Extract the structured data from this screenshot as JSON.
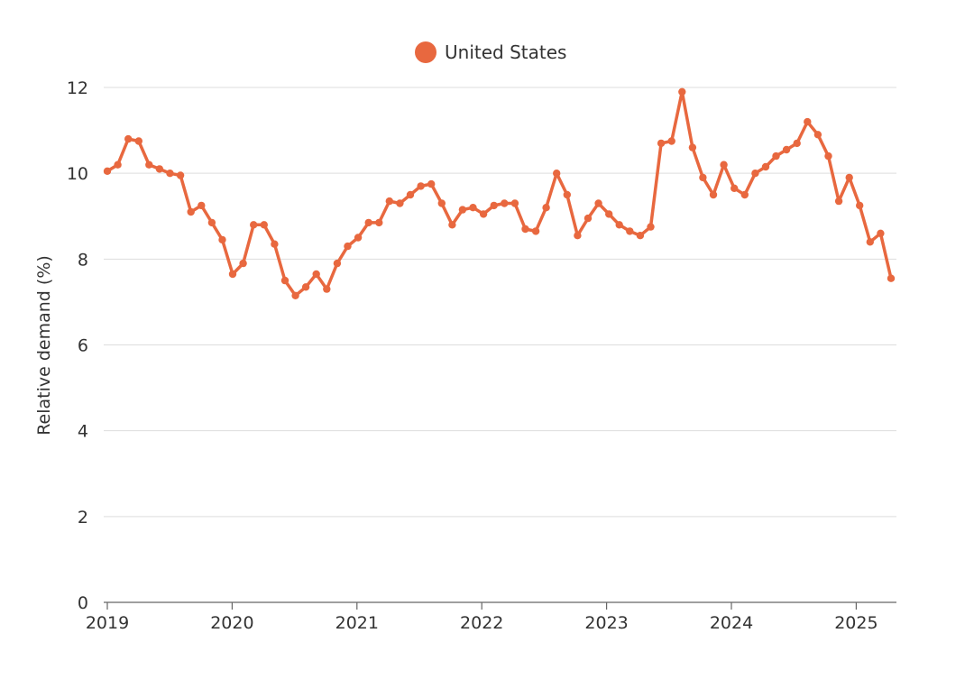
{
  "chart_data": {
    "type": "line",
    "title": "",
    "xlabel": "",
    "ylabel": "Relative demand (%)",
    "ylim": [
      0,
      12
    ],
    "yticks": [
      "0",
      "2",
      "4",
      "6",
      "8",
      "10",
      "12"
    ],
    "xticks": [
      "2019",
      "2020",
      "2021",
      "2022",
      "2023",
      "2024",
      "2025"
    ],
    "grid": true,
    "legend_position": "top-center",
    "series": [
      {
        "name": "United States",
        "color": "#e8683f",
        "values": [
          10.05,
          10.2,
          10.8,
          10.75,
          10.2,
          10.1,
          10.0,
          9.95,
          9.1,
          9.25,
          8.85,
          8.45,
          7.65,
          7.9,
          8.8,
          8.8,
          8.35,
          7.5,
          7.15,
          7.35,
          7.65,
          7.3,
          7.9,
          8.3,
          8.5,
          8.85,
          8.85,
          9.35,
          9.3,
          9.5,
          9.7,
          9.75,
          9.3,
          8.8,
          9.15,
          9.2,
          9.05,
          9.25,
          9.3,
          9.3,
          8.7,
          8.65,
          9.2,
          10.0,
          9.5,
          8.55,
          8.95,
          9.3,
          9.05,
          8.8,
          8.65,
          8.55,
          8.75,
          10.7,
          10.75,
          11.9,
          10.6,
          9.9,
          9.5,
          10.2,
          9.65,
          9.5,
          10.0,
          10.15,
          10.4,
          10.55,
          10.7,
          11.2,
          10.9,
          10.4,
          9.35,
          9.9,
          9.25,
          8.4,
          8.6,
          7.55
        ]
      }
    ]
  }
}
